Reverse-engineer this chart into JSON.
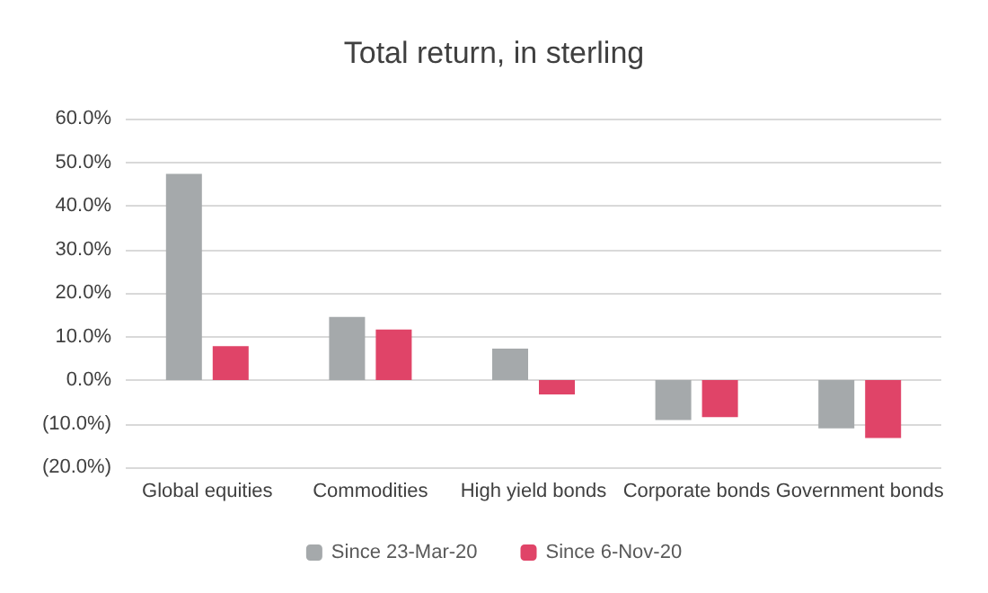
{
  "chart_data": {
    "type": "bar",
    "title": "Total return, in sterling",
    "categories": [
      "Global equities",
      "Commodities",
      "High yield bonds",
      "Corporate bonds",
      "Government bonds"
    ],
    "series": [
      {
        "name": "Since 23-Mar-20",
        "color": "#a5a9ab",
        "values": [
          47.3,
          14.5,
          7.2,
          -9.2,
          -11.1
        ]
      },
      {
        "name": "Since 6-Nov-20",
        "color": "#e04468",
        "values": [
          7.8,
          11.6,
          -3.3,
          -8.5,
          -13.3
        ]
      }
    ],
    "ylim": [
      -20,
      60
    ],
    "yticks": [
      {
        "value": -20,
        "label": "(20.0%)"
      },
      {
        "value": -10,
        "label": "(10.0%)"
      },
      {
        "value": 0,
        "label": "0.0%"
      },
      {
        "value": 10,
        "label": "10.0%"
      },
      {
        "value": 20,
        "label": "20.0%"
      },
      {
        "value": 30,
        "label": "30.0%"
      },
      {
        "value": 40,
        "label": "40.0%"
      },
      {
        "value": 50,
        "label": "50.0%"
      },
      {
        "value": 60,
        "label": "60.0%"
      }
    ],
    "grid": "y",
    "legend": "bottom"
  }
}
